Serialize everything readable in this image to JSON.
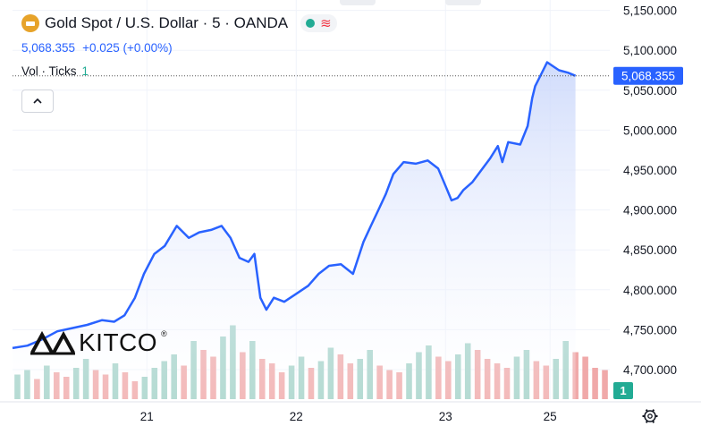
{
  "header": {
    "title": "Gold Spot / U.S. Dollar · 5 · OANDA",
    "price": "5,068.355",
    "change": "+0.025 (+0.00%)",
    "vol_label": "Vol · Ticks",
    "vol_value": "1",
    "collapse_icon": "chevron-up-icon"
  },
  "watermark": {
    "brand": "KITCO",
    "registered": "®"
  },
  "colors": {
    "line": "#2962ff",
    "area_fill_top": "#c9d6fb",
    "vol_up": "#a3d2c8",
    "vol_down": "#f0a9a9",
    "grid": "#f0f3fa",
    "axis_text": "#131722",
    "label_bg": "#2962ff"
  },
  "chart_data": {
    "type": "area",
    "title": "Gold Spot / U.S. Dollar · 5 · OANDA",
    "xlabel": "",
    "ylabel": "",
    "x_ticks": [
      {
        "label": "21",
        "x": 2.0
      },
      {
        "label": "22",
        "x": 3.0
      },
      {
        "label": "23",
        "x": 4.0
      },
      {
        "label": "25",
        "x": 4.7
      }
    ],
    "xlim": [
      1.1,
      5.1
    ],
    "ylim": [
      4663,
      5163
    ],
    "y_ticks": [
      4700,
      4750,
      4800,
      4850,
      4900,
      4950,
      5000,
      5050,
      5100,
      5150
    ],
    "y_tick_labels": [
      "4,700.000",
      "4,750.000",
      "4,800.000",
      "4,850.000",
      "4,900.000",
      "4,950.000",
      "5,000.000",
      "5,050.000",
      "5,100.000",
      "5,150.000"
    ],
    "last_price_label": "5,068.355",
    "volume_badge": "1",
    "grid": true,
    "series": [
      {
        "x": [
          1.1,
          1.2,
          1.3,
          1.4,
          1.5,
          1.6,
          1.7,
          1.78,
          1.85,
          1.92,
          1.98,
          2.05,
          2.12,
          2.2,
          2.28,
          2.35,
          2.43,
          2.5,
          2.56,
          2.62,
          2.68,
          2.72,
          2.76,
          2.8,
          2.85,
          2.92,
          3.0,
          3.08,
          3.15,
          3.22,
          3.3,
          3.38,
          3.45,
          3.5,
          3.55,
          3.6,
          3.65,
          3.72,
          3.8,
          3.88,
          3.95,
          4.0,
          4.04,
          4.08,
          4.12,
          4.18,
          4.24,
          4.3,
          4.35,
          4.38,
          4.42,
          4.5,
          4.55,
          4.58,
          4.6,
          4.64,
          4.68,
          4.72,
          4.76,
          4.82,
          4.87
        ],
        "y": [
          4727,
          4730,
          4738,
          4748,
          4752,
          4756,
          4762,
          4760,
          4768,
          4790,
          4820,
          4845,
          4855,
          4880,
          4865,
          4872,
          4875,
          4880,
          4865,
          4840,
          4835,
          4845,
          4790,
          4775,
          4790,
          4785,
          4795,
          4805,
          4820,
          4830,
          4832,
          4820,
          4860,
          4880,
          4900,
          4920,
          4945,
          4960,
          4958,
          4962,
          4952,
          4930,
          4912,
          4915,
          4925,
          4935,
          4950,
          4965,
          4980,
          4960,
          4985,
          4982,
          5005,
          5040,
          5055,
          5070,
          5085,
          5080,
          5075,
          5072,
          5068
        ]
      }
    ],
    "volume": {
      "ylim": [
        0,
        4
      ],
      "note": "tick volume histogram along the bottom of the pane",
      "values": [
        1.1,
        1.3,
        0.9,
        1.5,
        1.2,
        1.0,
        1.4,
        1.8,
        1.3,
        1.1,
        1.6,
        1.2,
        0.8,
        1.0,
        1.4,
        1.7,
        2.0,
        1.5,
        2.6,
        2.2,
        1.9,
        2.8,
        3.3,
        2.1,
        2.6,
        1.8,
        1.6,
        1.2,
        1.5,
        1.9,
        1.4,
        1.7,
        2.3,
        2.0,
        1.6,
        1.8,
        2.2,
        1.5,
        1.3,
        1.2,
        1.6,
        2.1,
        2.4,
        1.9,
        1.7,
        2.0,
        2.5,
        2.2,
        1.8,
        1.6,
        1.4,
        1.9,
        2.2,
        1.7,
        1.5,
        1.8,
        2.6,
        2.1,
        1.9,
        1.4,
        1.3
      ]
    }
  }
}
